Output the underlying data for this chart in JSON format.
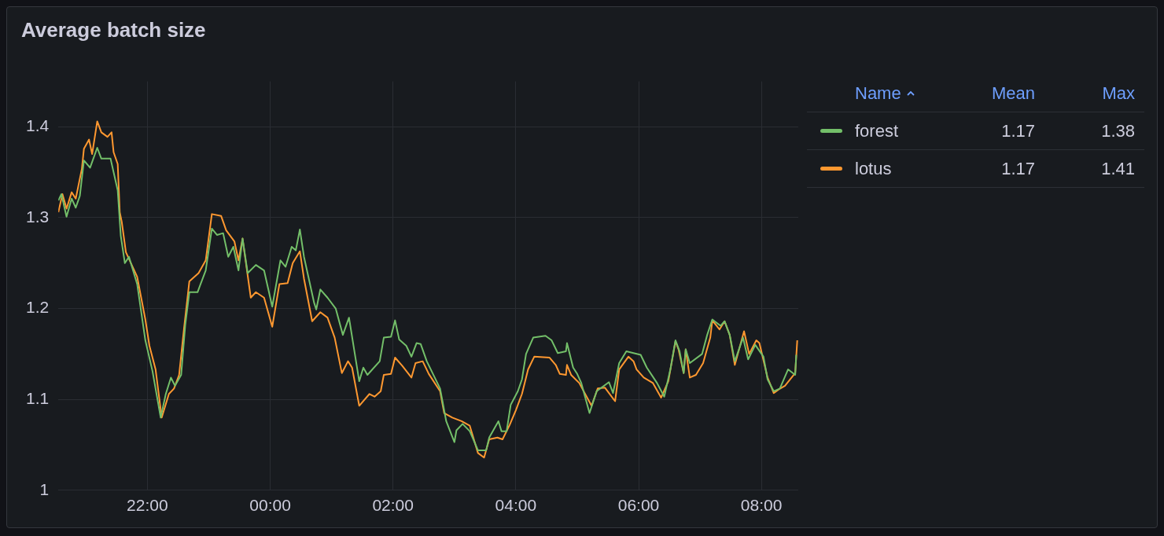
{
  "chart_data": {
    "type": "line",
    "title": "Average batch size",
    "legend": "right",
    "legend_title": "Name",
    "grid": true,
    "marker": "none",
    "line_style": "solid",
    "xlim": [
      "--01-01T20:33",
      "--01-02T08:36"
    ],
    "xticks": [
      {
        "value": "--01-01T22:00",
        "label": "22:00"
      },
      {
        "value": "--01-02T00:00",
        "label": "00:00"
      },
      {
        "value": "--01-02T02:00",
        "label": "02:00"
      },
      {
        "value": "--01-02T04:00",
        "label": "04:00"
      },
      {
        "value": "--01-02T06:00",
        "label": "06:00"
      },
      {
        "value": "--01-02T08:00",
        "label": "08:00"
      }
    ],
    "ylim": [
      1,
      1.45
    ],
    "yticks": [
      1,
      1.1,
      1.2,
      1.3,
      1.4
    ],
    "annotations": [
      "Mean",
      "Max",
      "1.17",
      "1.38",
      "1.17",
      "1.41"
    ],
    "series": [
      {
        "name": "forest",
        "color": "#73bf69",
        "x": [
          "--01-01T20:33",
          "--01-01T20:36",
          "--01-01T20:41",
          "--01-01T20:46",
          "--01-01T20:50",
          "--01-01T20:54",
          "--01-01T20:58",
          "--01-01T21:04",
          "--01-01T21:11",
          "--01-01T21:15",
          "--01-01T21:24",
          "--01-01T21:31",
          "--01-01T21:34",
          "--01-01T21:38",
          "--01-01T21:42",
          "--01-01T21:50",
          "--01-01T21:58",
          "--01-01T22:05",
          "--01-01T22:13",
          "--01-01T22:18",
          "--01-01T22:23",
          "--01-01T22:27",
          "--01-01T22:33",
          "--01-01T22:37",
          "--01-01T22:41",
          "--01-01T22:49",
          "--01-01T22:57",
          "--01-01T23:03",
          "--01-01T23:08",
          "--01-01T23:14",
          "--01-01T23:19",
          "--01-01T23:24",
          "--01-01T23:29",
          "--01-01T23:33",
          "--01-01T23:38",
          "--01-01T23:46",
          "--01-01T23:54",
          "--01-02T00:02",
          "--01-02T00:10",
          "--01-02T00:15",
          "--01-02T00:21",
          "--01-02T00:25",
          "--01-02T00:29",
          "--01-02T00:33",
          "--01-02T00:43",
          "--01-02T00:45",
          "--01-02T00:49",
          "--01-02T00:56",
          "--01-02T01:04",
          "--01-02T01:11",
          "--01-02T01:17",
          "--01-02T01:27",
          "--01-02T01:31",
          "--01-02T01:35",
          "--01-02T01:47",
          "--01-02T01:51",
          "--01-02T01:58",
          "--01-02T02:02",
          "--01-02T02:06",
          "--01-02T02:13",
          "--01-02T02:18",
          "--01-02T02:23",
          "--01-02T02:27",
          "--01-02T02:33",
          "--01-02T02:46",
          "--01-02T02:52",
          "--01-02T03:00",
          "--01-02T03:02",
          "--01-02T03:08",
          "--01-02T03:15",
          "--01-02T03:23",
          "--01-02T03:31",
          "--01-02T03:34",
          "--01-02T03:43",
          "--01-02T03:46",
          "--01-02T03:51",
          "--01-02T03:55",
          "--01-02T04:02",
          "--01-02T04:06",
          "--01-02T04:10",
          "--01-02T04:17",
          "--01-02T04:29",
          "--01-02T04:35",
          "--01-02T04:41",
          "--01-02T04:49",
          "--01-02T04:50",
          "--01-02T04:56",
          "--01-02T05:00",
          "--01-02T05:04",
          "--01-02T05:12",
          "--01-02T05:19",
          "--01-02T05:31",
          "--01-02T05:35",
          "--01-02T05:41",
          "--01-02T05:48",
          "--01-02T06:02",
          "--01-02T06:08",
          "--01-02T06:18",
          "--01-02T06:25",
          "--01-02T06:31",
          "--01-02T06:36",
          "--01-02T06:40",
          "--01-02T06:44",
          "--01-02T06:46",
          "--01-02T06:50",
          "--01-02T07:02",
          "--01-02T07:07",
          "--01-02T07:12",
          "--01-02T07:20",
          "--01-02T07:24",
          "--01-02T07:29",
          "--01-02T07:34",
          "--01-02T07:42",
          "--01-02T07:47",
          "--01-02T07:54",
          "--01-02T08:02",
          "--01-02T08:06",
          "--01-02T08:12",
          "--01-02T08:18",
          "--01-02T08:26",
          "--01-02T08:33",
          "--01-02T08:34"
        ],
        "values": [
          1.319,
          1.326,
          1.301,
          1.321,
          1.311,
          1.324,
          1.363,
          1.355,
          1.377,
          1.365,
          1.365,
          1.33,
          1.28,
          1.25,
          1.257,
          1.227,
          1.165,
          1.131,
          1.08,
          1.106,
          1.124,
          1.115,
          1.127,
          1.182,
          1.218,
          1.218,
          1.242,
          1.288,
          1.281,
          1.283,
          1.257,
          1.268,
          1.242,
          1.277,
          1.239,
          1.248,
          1.242,
          1.202,
          1.253,
          1.246,
          1.268,
          1.264,
          1.287,
          1.257,
          1.206,
          1.199,
          1.221,
          1.212,
          1.2,
          1.171,
          1.19,
          1.12,
          1.135,
          1.127,
          1.142,
          1.168,
          1.169,
          1.187,
          1.166,
          1.159,
          1.147,
          1.162,
          1.161,
          1.142,
          1.112,
          1.076,
          1.053,
          1.066,
          1.073,
          1.065,
          1.044,
          1.044,
          1.058,
          1.076,
          1.065,
          1.065,
          1.094,
          1.109,
          1.122,
          1.15,
          1.168,
          1.17,
          1.165,
          1.151,
          1.153,
          1.162,
          1.135,
          1.128,
          1.118,
          1.085,
          1.109,
          1.119,
          1.107,
          1.14,
          1.153,
          1.149,
          1.135,
          1.118,
          1.103,
          1.133,
          1.165,
          1.153,
          1.129,
          1.155,
          1.14,
          1.15,
          1.171,
          1.188,
          1.181,
          1.186,
          1.171,
          1.142,
          1.168,
          1.144,
          1.16,
          1.147,
          1.122,
          1.109,
          1.112,
          1.133,
          1.127,
          1.149
        ]
      },
      {
        "name": "lotus",
        "color": "#ff9830",
        "x": [
          "--01-01T20:33",
          "--01-01T20:37",
          "--01-01T20:41",
          "--01-01T20:46",
          "--01-01T20:50",
          "--01-01T20:56",
          "--01-01T20:58",
          "--01-01T21:03",
          "--01-01T21:06",
          "--01-01T21:11",
          "--01-01T21:15",
          "--01-01T21:21",
          "--01-01T21:25",
          "--01-01T21:27",
          "--01-01T21:31",
          "--01-01T21:33",
          "--01-01T21:35",
          "--01-01T21:39",
          "--01-01T21:50",
          "--01-01T21:58",
          "--01-01T22:02",
          "--01-01T22:08",
          "--01-01T22:14",
          "--01-01T22:21",
          "--01-01T22:26",
          "--01-01T22:31",
          "--01-01T22:36",
          "--01-01T22:41",
          "--01-01T22:50",
          "--01-01T22:57",
          "--01-01T23:03",
          "--01-01T23:12",
          "--01-01T23:17",
          "--01-01T23:25",
          "--01-01T23:29",
          "--01-01T23:33",
          "--01-01T23:41",
          "--01-01T23:46",
          "--01-01T23:54",
          "--01-02T00:02",
          "--01-02T00:09",
          "--01-02T00:17",
          "--01-02T00:22",
          "--01-02T00:29",
          "--01-02T00:33",
          "--01-02T00:41",
          "--01-02T00:49",
          "--01-02T00:56",
          "--01-02T01:03",
          "--01-02T01:10",
          "--01-02T01:16",
          "--01-02T01:20",
          "--01-02T01:27",
          "--01-02T01:37",
          "--01-02T01:42",
          "--01-02T01:48",
          "--01-02T01:51",
          "--01-02T01:58",
          "--01-02T02:02",
          "--01-02T02:09",
          "--01-02T02:18",
          "--01-02T02:22",
          "--01-02T02:29",
          "--01-02T02:35",
          "--01-02T02:46",
          "--01-02T02:50",
          "--01-02T02:58",
          "--01-02T03:07",
          "--01-02T03:15",
          "--01-02T03:23",
          "--01-02T03:29",
          "--01-02T03:34",
          "--01-02T03:42",
          "--01-02T03:47",
          "--01-02T03:54",
          "--01-02T04:00",
          "--01-02T04:06",
          "--01-02T04:12",
          "--01-02T04:18",
          "--01-02T04:33",
          "--01-02T04:39",
          "--01-02T04:43",
          "--01-02T04:49",
          "--01-02T04:50",
          "--01-02T04:54",
          "--01-02T05:02",
          "--01-02T05:14",
          "--01-02T05:20",
          "--01-02T05:27",
          "--01-02T05:37",
          "--01-02T05:41",
          "--01-02T05:50",
          "--01-02T05:55",
          "--01-02T05:58",
          "--01-02T06:05",
          "--01-02T06:14",
          "--01-02T06:22",
          "--01-02T06:29",
          "--01-02T06:36",
          "--01-02T06:39",
          "--01-02T06:44",
          "--01-02T06:46",
          "--01-02T06:50",
          "--01-02T06:56",
          "--01-02T07:03",
          "--01-02T07:10",
          "--01-02T07:12",
          "--01-02T07:19",
          "--01-02T07:24",
          "--01-02T07:29",
          "--01-02T07:34",
          "--01-02T07:43",
          "--01-02T07:48",
          "--01-02T07:55",
          "--01-02T07:58",
          "--01-02T08:06",
          "--01-02T08:12",
          "--01-02T08:17",
          "--01-02T08:23",
          "--01-02T08:33",
          "--01-02T08:35"
        ],
        "values": [
          1.306,
          1.326,
          1.31,
          1.328,
          1.321,
          1.354,
          1.376,
          1.386,
          1.37,
          1.406,
          1.394,
          1.389,
          1.394,
          1.372,
          1.359,
          1.306,
          1.295,
          1.262,
          1.235,
          1.188,
          1.159,
          1.133,
          1.08,
          1.106,
          1.112,
          1.127,
          1.18,
          1.23,
          1.239,
          1.253,
          1.304,
          1.302,
          1.286,
          1.274,
          1.253,
          1.277,
          1.212,
          1.218,
          1.212,
          1.18,
          1.227,
          1.228,
          1.25,
          1.263,
          1.233,
          1.186,
          1.196,
          1.19,
          1.168,
          1.129,
          1.142,
          1.135,
          1.093,
          1.106,
          1.103,
          1.109,
          1.127,
          1.128,
          1.146,
          1.137,
          1.124,
          1.14,
          1.142,
          1.128,
          1.109,
          1.085,
          1.08,
          1.076,
          1.071,
          1.041,
          1.036,
          1.056,
          1.058,
          1.056,
          1.072,
          1.088,
          1.106,
          1.133,
          1.147,
          1.146,
          1.138,
          1.128,
          1.127,
          1.138,
          1.127,
          1.118,
          1.093,
          1.112,
          1.113,
          1.098,
          1.133,
          1.147,
          1.142,
          1.133,
          1.124,
          1.118,
          1.102,
          1.12,
          1.164,
          1.155,
          1.129,
          1.155,
          1.124,
          1.127,
          1.14,
          1.168,
          1.187,
          1.177,
          1.186,
          1.171,
          1.138,
          1.175,
          1.15,
          1.165,
          1.162,
          1.124,
          1.107,
          1.111,
          1.115,
          1.129,
          1.165
        ]
      }
    ]
  }
}
